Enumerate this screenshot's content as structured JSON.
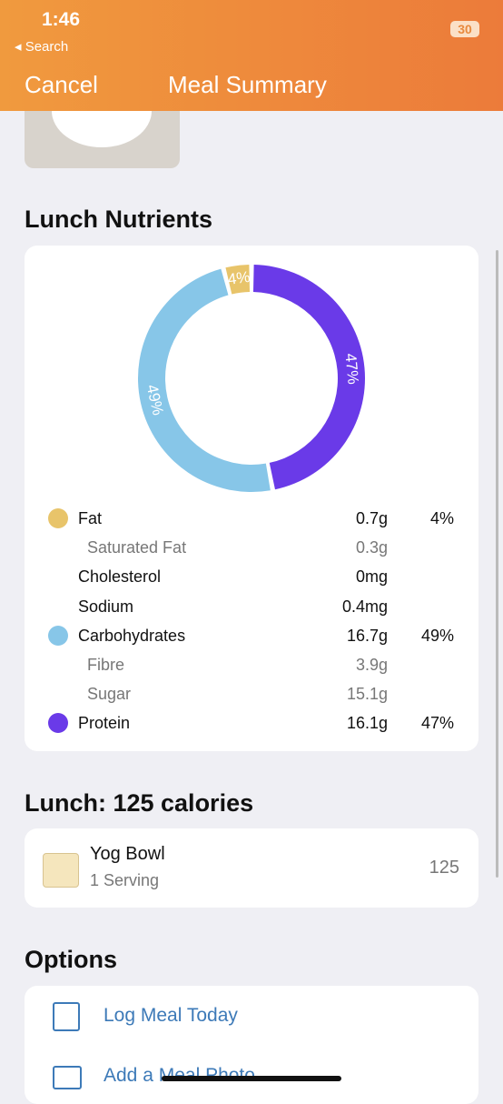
{
  "status_bar": {
    "time": "1:46",
    "back": "Search",
    "battery": "30"
  },
  "nav": {
    "cancel": "Cancel",
    "title": "Meal Summary"
  },
  "nutrients": {
    "title": "Lunch Nutrients",
    "rows": [
      {
        "name": "Fat",
        "amount": "0.7g",
        "percent": "4%",
        "color": "#e8c46a",
        "indent": false
      },
      {
        "name": "Saturated Fat",
        "amount": "0.3g",
        "indent": true
      },
      {
        "name": "Cholesterol",
        "amount": "0mg",
        "indent": false
      },
      {
        "name": "Sodium",
        "amount": "0.4mg",
        "indent": false
      },
      {
        "name": "Carbohydrates",
        "amount": "16.7g",
        "percent": "49%",
        "color": "#87c6e8",
        "indent": false
      },
      {
        "name": "Fibre",
        "amount": "3.9g",
        "indent": true
      },
      {
        "name": "Sugar",
        "amount": "15.1g",
        "indent": true
      },
      {
        "name": "Protein",
        "amount": "16.1g",
        "percent": "47%",
        "color": "#6a3ae8",
        "indent": false
      }
    ]
  },
  "chart_data": {
    "type": "donut",
    "values": [
      47,
      49,
      4
    ],
    "value_labels": [
      "47%",
      "49%",
      "4%"
    ],
    "colors": [
      "#6a3ae8",
      "#87c6e8",
      "#e8c46a"
    ]
  },
  "meal": {
    "title": "Lunch: 125 calories",
    "items": [
      {
        "name": "Yog Bowl",
        "serving": "1 Serving",
        "calories": "125"
      }
    ]
  },
  "options": {
    "title": "Options",
    "items": [
      "Log Meal Today",
      "Add a Meal Photo"
    ]
  }
}
